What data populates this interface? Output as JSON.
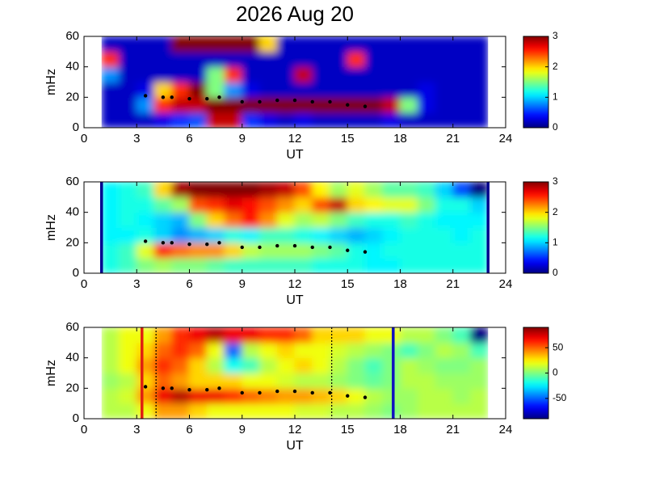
{
  "chart_data": [
    {
      "type": "heatmap",
      "title": "2026 Aug 20",
      "xlabel": "UT",
      "ylabel": "mHz",
      "xlim": [
        0,
        24
      ],
      "xticks": [
        0,
        3,
        6,
        9,
        12,
        15,
        18,
        21,
        24
      ],
      "ylim": [
        0,
        60
      ],
      "yticks": [
        0,
        20,
        40,
        60
      ],
      "clim": [
        0,
        3
      ],
      "cticks": [
        0,
        1,
        2,
        3
      ],
      "x_edges": [
        1,
        2,
        3,
        4,
        5,
        6,
        7,
        8,
        9,
        10,
        11,
        12,
        13,
        14,
        15,
        16,
        17,
        18,
        19,
        20,
        21,
        22,
        23
      ],
      "y_edges": [
        0,
        10,
        20,
        30,
        40,
        50,
        60
      ],
      "z": [
        [
          0.2,
          0.2,
          0.2,
          0.3,
          0.5,
          0.6,
          2.8,
          2.8,
          0.5,
          0.3,
          0.2,
          0.3,
          0.2,
          0.2,
          0.2,
          0.2,
          0.3,
          0.2,
          0.2,
          0.2,
          0.2,
          0.2
        ],
        [
          0.2,
          0.2,
          0.8,
          2.5,
          2.8,
          2.8,
          3,
          3,
          3,
          3,
          3,
          3,
          3,
          3,
          3,
          3,
          2.8,
          1.5,
          0.3,
          0.2,
          0.2,
          0.2
        ],
        [
          0.2,
          0.2,
          0.3,
          2,
          2.5,
          3,
          1.5,
          0.8,
          0.3,
          0.2,
          0.2,
          0.2,
          0.2,
          0.2,
          0.2,
          0.2,
          0.2,
          0.2,
          0.3,
          0.2,
          0.2,
          0.2
        ],
        [
          0.8,
          0.2,
          0.2,
          0.2,
          0.2,
          0.2,
          1.5,
          2.5,
          0.2,
          0.2,
          0.2,
          2.8,
          0.2,
          0.2,
          0.2,
          0.2,
          0.2,
          0.2,
          0.2,
          0.2,
          0.2,
          0.2
        ],
        [
          2.5,
          0.2,
          0.2,
          0.2,
          0.2,
          0.2,
          0.2,
          0.2,
          0.2,
          0.2,
          0.2,
          0.2,
          0.2,
          0.2,
          2.5,
          0.2,
          0.2,
          0.2,
          0.2,
          0.2,
          0.2,
          0.2
        ],
        [
          0.2,
          0.2,
          0.2,
          0.2,
          3,
          3,
          3,
          3,
          3,
          2,
          0.2,
          0.2,
          0.2,
          0.2,
          0.2,
          0.2,
          0.2,
          0.2,
          0.2,
          0.2,
          0.2,
          0.2
        ]
      ],
      "track": {
        "color": "#000000",
        "x": [
          3.5,
          4.5,
          5,
          6,
          7,
          7.7,
          null,
          9,
          10,
          11,
          12,
          13,
          14,
          15,
          16
        ],
        "y": [
          21,
          20,
          20,
          19,
          19,
          20,
          null,
          17,
          17,
          18,
          18,
          17,
          17,
          15,
          14
        ]
      },
      "vlines": []
    },
    {
      "type": "heatmap",
      "xlabel": "UT",
      "ylabel": "mHz",
      "xlim": [
        0,
        24
      ],
      "xticks": [
        0,
        3,
        6,
        9,
        12,
        15,
        18,
        21,
        24
      ],
      "ylim": [
        0,
        60
      ],
      "yticks": [
        0,
        20,
        40,
        60
      ],
      "clim": [
        0,
        3
      ],
      "cticks": [
        0,
        1,
        2,
        3
      ],
      "x_edges": [
        1,
        2,
        3,
        4,
        5,
        6,
        7,
        8,
        9,
        10,
        11,
        12,
        13,
        14,
        15,
        16,
        17,
        18,
        19,
        20,
        21,
        22,
        23
      ],
      "y_edges": [
        0,
        10,
        20,
        30,
        40,
        50,
        60
      ],
      "z": [
        [
          1.2,
          1.3,
          1.5,
          1.6,
          1.5,
          1.5,
          1.4,
          1.3,
          1.3,
          1.3,
          1.3,
          1.3,
          1.2,
          1.2,
          1.2,
          1.1,
          1.1,
          1.2,
          1.2,
          1.2,
          1.2,
          1.2
        ],
        [
          1.2,
          1.3,
          1.8,
          2.5,
          2.3,
          2.2,
          2.2,
          2.0,
          1.7,
          1.6,
          1.6,
          1.6,
          1.5,
          1.4,
          1.2,
          1.1,
          1.2,
          1.2,
          1.2,
          1.2,
          1.2,
          1.2
        ],
        [
          1.1,
          1.1,
          1.2,
          1.0,
          0.8,
          0.9,
          1.0,
          1.2,
          1.1,
          1.3,
          1.3,
          1.2,
          1.1,
          1.0,
          0.9,
          1.0,
          1.1,
          1.2,
          1.2,
          1.2,
          1.1,
          1.2
        ],
        [
          1.1,
          1.2,
          1.1,
          1.0,
          0.9,
          1.5,
          2.0,
          2.3,
          2.6,
          2.2,
          1.8,
          1.6,
          1.7,
          1.5,
          1.3,
          1.2,
          1.2,
          1.3,
          1.2,
          1.1,
          1.1,
          1.1
        ],
        [
          1.1,
          1.2,
          1.2,
          1.4,
          1.6,
          2.4,
          2.5,
          2.7,
          2.6,
          2.4,
          2.2,
          2.0,
          2.4,
          2.8,
          2.0,
          1.9,
          1.8,
          1.8,
          1.5,
          1.2,
          1.2,
          1.0
        ],
        [
          1.1,
          1.2,
          1.3,
          2.0,
          2.9,
          3.0,
          3.0,
          3.0,
          3.0,
          2.9,
          2.8,
          2.4,
          1.9,
          1.6,
          1.8,
          1.6,
          1.4,
          1.4,
          1.3,
          1.0,
          0.6,
          0.0
        ]
      ],
      "track": {
        "color": "#000000",
        "x": [
          3.5,
          4.5,
          5,
          6,
          7,
          7.7,
          null,
          9,
          10,
          11,
          12,
          13,
          14,
          15,
          16
        ],
        "y": [
          21,
          20,
          20,
          19,
          19,
          20,
          null,
          17,
          17,
          18,
          18,
          17,
          17,
          15,
          14
        ]
      },
      "vlines": [
        {
          "x": 1,
          "color": "#00008f",
          "style": "solid"
        },
        {
          "x": 23,
          "color": "#00008f",
          "style": "solid"
        }
      ]
    },
    {
      "type": "heatmap",
      "xlabel": "UT",
      "ylabel": "mHz",
      "xlim": [
        0,
        24
      ],
      "xticks": [
        0,
        3,
        6,
        9,
        12,
        15,
        18,
        21,
        24
      ],
      "ylim": [
        0,
        60
      ],
      "yticks": [
        0,
        20,
        40,
        60
      ],
      "clim": [
        -90,
        90
      ],
      "cticks": [
        -50,
        0,
        50
      ],
      "x_edges": [
        1,
        2,
        3,
        4,
        5,
        6,
        7,
        8,
        9,
        10,
        11,
        12,
        13,
        14,
        15,
        16,
        17,
        18,
        19,
        20,
        21,
        22,
        23
      ],
      "y_edges": [
        0,
        10,
        20,
        30,
        40,
        50,
        60
      ],
      "z": [
        [
          10,
          10,
          20,
          40,
          40,
          30,
          20,
          20,
          20,
          20,
          20,
          15,
          15,
          10,
          10,
          5,
          0,
          5,
          10,
          10,
          10,
          10
        ],
        [
          10,
          15,
          40,
          70,
          80,
          70,
          70,
          60,
          50,
          45,
          40,
          40,
          35,
          30,
          20,
          10,
          5,
          5,
          10,
          10,
          5,
          10
        ],
        [
          5,
          10,
          30,
          50,
          40,
          30,
          30,
          30,
          20,
          20,
          15,
          10,
          10,
          5,
          0,
          -5,
          0,
          10,
          10,
          5,
          5,
          5
        ],
        [
          10,
          20,
          40,
          60,
          50,
          30,
          10,
          -20,
          -10,
          10,
          20,
          30,
          20,
          10,
          0,
          -10,
          0,
          10,
          5,
          0,
          0,
          5
        ],
        [
          10,
          20,
          30,
          50,
          60,
          50,
          20,
          -50,
          10,
          20,
          30,
          20,
          20,
          15,
          10,
          5,
          0,
          -10,
          0,
          10,
          5,
          -10
        ],
        [
          10,
          20,
          20,
          40,
          60,
          70,
          80,
          70,
          70,
          60,
          60,
          50,
          30,
          30,
          30,
          20,
          20,
          10,
          10,
          0,
          -10,
          -90
        ]
      ],
      "track": {
        "color": "#000000",
        "x": [
          3.5,
          4.5,
          5,
          6,
          7,
          7.7,
          null,
          9,
          10,
          11,
          12,
          13,
          14,
          15,
          16
        ],
        "y": [
          21,
          20,
          20,
          19,
          19,
          20,
          null,
          17,
          17,
          18,
          18,
          17,
          17,
          15,
          14
        ]
      },
      "vlines": [
        {
          "x": 3.3,
          "color": "#e02010",
          "style": "solid"
        },
        {
          "x": 17.6,
          "color": "#1010c0",
          "style": "solid"
        },
        {
          "x": 4.1,
          "color": "#000000",
          "style": "dotted"
        },
        {
          "x": 14.1,
          "color": "#000000",
          "style": "dotted"
        }
      ]
    }
  ]
}
